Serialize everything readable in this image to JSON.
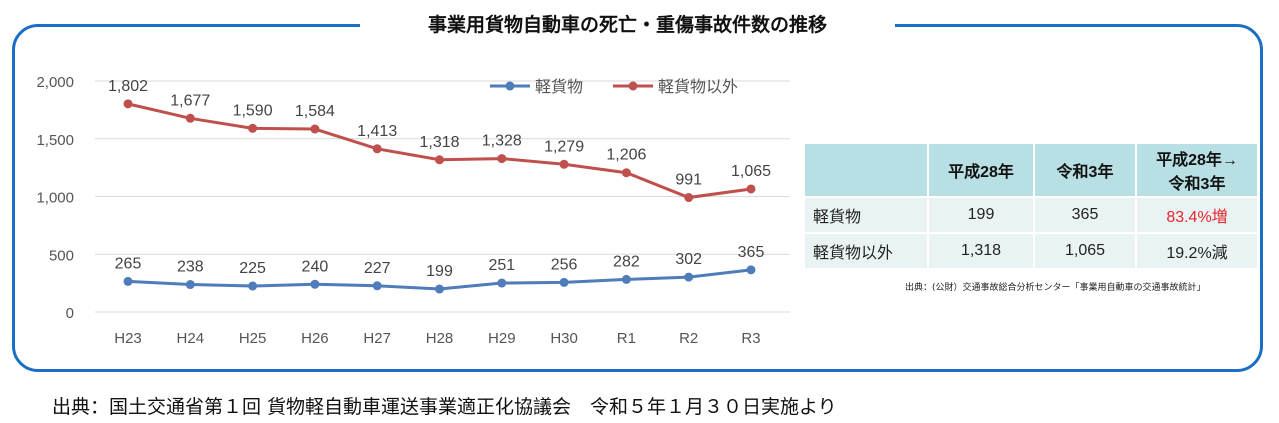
{
  "title": "事業用貨物自動車の死亡・重傷事故件数の推移",
  "chart_data": {
    "type": "line",
    "categories": [
      "H23",
      "H24",
      "H25",
      "H26",
      "H27",
      "H28",
      "H29",
      "H30",
      "R1",
      "R2",
      "R3"
    ],
    "yticks": [
      "2,000",
      "1,500",
      "1,000",
      "500",
      "0"
    ],
    "ylim": [
      0,
      2000
    ],
    "grid": true,
    "legend": "top-right",
    "series": [
      {
        "name": "軽貨物",
        "color": "#4f7cba",
        "values": [
          265,
          238,
          225,
          240,
          227,
          199,
          251,
          256,
          282,
          302,
          365
        ],
        "labels": [
          "265",
          "238",
          "225",
          "240",
          "227",
          "199",
          "251",
          "256",
          "282",
          "302",
          "365"
        ]
      },
      {
        "name": "軽貨物以外",
        "color": "#c0504d",
        "values": [
          1802,
          1677,
          1590,
          1584,
          1413,
          1318,
          1328,
          1279,
          1206,
          991,
          1065
        ],
        "labels": [
          "1,802",
          "1,677",
          "1,590",
          "1,584",
          "1,413",
          "1,318",
          "1,328",
          "1,279",
          "1,206",
          "991",
          "1,065"
        ]
      }
    ]
  },
  "table": {
    "headers": [
      "",
      "平成28年",
      "令和3年",
      "平成28年→\n令和3年"
    ],
    "rows": [
      {
        "label": "軽貨物",
        "h28": "199",
        "r3": "365",
        "change": "83.4%増",
        "change_color": "#e8262a"
      },
      {
        "label": "軽貨物以外",
        "h28": "1,318",
        "r3": "1,065",
        "change": "19.2%減",
        "change_color": "#222222"
      }
    ],
    "source": "出典：(公財）交通事故総合分析センター「事業用自動車の交通事故統計」"
  },
  "source": "出典：国土交通省第１回 貨物軽自動車運送事業適正化協議会　令和５年１月３０日実施より"
}
